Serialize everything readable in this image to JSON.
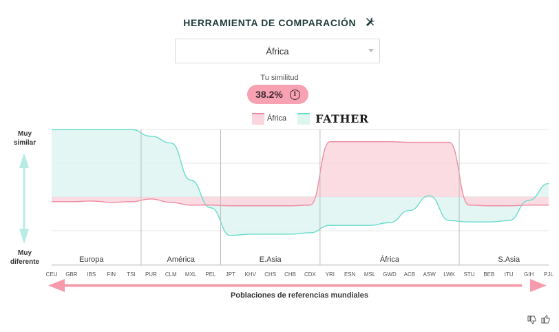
{
  "header": {
    "title": "HERRAMIENTA DE COMPARACIÓN",
    "title_icon": "tools-icon"
  },
  "selector": {
    "value": "África"
  },
  "similarity": {
    "label": "Tu similitud",
    "value": "38.2%",
    "info_icon": "info-icon"
  },
  "legend": {
    "series_a": "África",
    "series_b": "FATHER"
  },
  "y_axis": {
    "top": [
      "Muy",
      "similar"
    ],
    "bottom": [
      "Muy",
      "diferente"
    ]
  },
  "x_axis_label": "Poblaciones de referencias mundiales",
  "colors": {
    "africa": "#ee8ca1",
    "africa_fill": "#fbd6de",
    "father": "#67dccd",
    "father_fill": "#dff5f1",
    "pill": "#f7a1b3",
    "arrow": "#f59bac",
    "v_arrow": "#b7ece4"
  },
  "chart_data": {
    "type": "area",
    "groups": [
      {
        "name": "Europa",
        "count": 5
      },
      {
        "name": "América",
        "count": 4
      },
      {
        "name": "E.Asia",
        "count": 5
      },
      {
        "name": "África",
        "count": 7
      },
      {
        "name": "S.Asia",
        "count": 5
      }
    ],
    "x": [
      "CEU",
      "GBR",
      "IBS",
      "FIN",
      "TSI",
      "PUR",
      "CLM",
      "MXL",
      "PEL",
      "JPT",
      "KHV",
      "CHS",
      "CHB",
      "CDX",
      "YRI",
      "ESN",
      "MSL",
      "GWD",
      "ACB",
      "ASW",
      "LWK",
      "STU",
      "BEB",
      "ITU",
      "GIH",
      "PJL"
    ],
    "ylim": [
      -1,
      1
    ],
    "series": [
      {
        "name": "África",
        "values": [
          -0.07,
          -0.07,
          -0.06,
          -0.08,
          -0.07,
          -0.03,
          -0.08,
          -0.12,
          -0.12,
          -0.13,
          -0.13,
          -0.13,
          -0.13,
          -0.12,
          0.82,
          0.82,
          0.82,
          0.82,
          0.81,
          0.81,
          0.81,
          -0.12,
          -0.13,
          -0.13,
          -0.12,
          -0.12
        ]
      },
      {
        "name": "FATHER",
        "values": [
          1.0,
          1.0,
          1.0,
          1.0,
          1.0,
          0.9,
          0.8,
          0.25,
          -0.16,
          -0.57,
          -0.55,
          -0.55,
          -0.55,
          -0.53,
          -0.42,
          -0.42,
          -0.42,
          -0.38,
          -0.2,
          0.02,
          -0.35,
          -0.37,
          -0.37,
          -0.35,
          -0.05,
          0.2
        ]
      }
    ]
  },
  "feedback": {
    "down": "thumbs-down-icon",
    "up": "thumbs-up-icon"
  }
}
